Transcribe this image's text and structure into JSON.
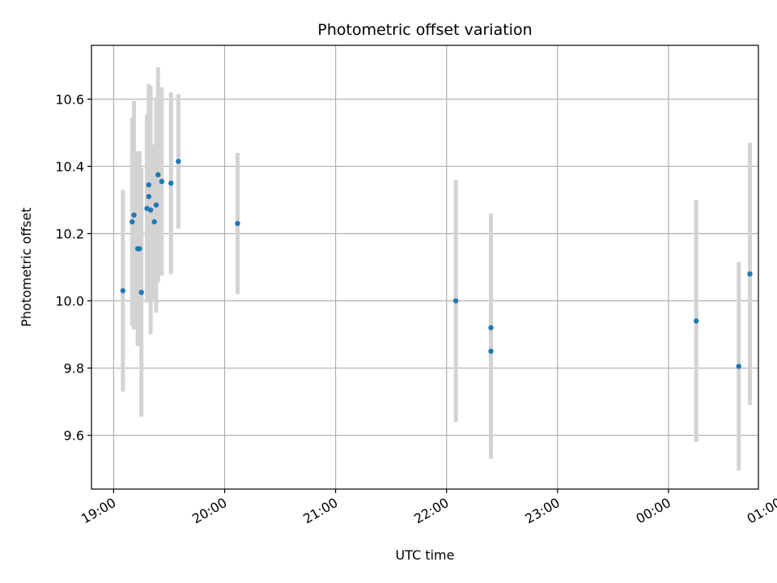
{
  "chart_data": {
    "type": "scatter",
    "title": "Photometric offset variation",
    "xlabel": "UTC time",
    "ylabel": "Photometric offset",
    "x_ticks": [
      "19:00",
      "20:00",
      "21:00",
      "22:00",
      "23:00",
      "00:00",
      "01:00"
    ],
    "y_ticks": [
      "9.6",
      "9.8",
      "10.0",
      "10.2",
      "10.4",
      "10.6"
    ],
    "xlim_hours": [
      18.8,
      24.81
    ],
    "ylim": [
      9.44,
      10.76
    ],
    "grid": true,
    "marker_color": "#1f77b4",
    "errorbar_color": "#d3d3d3",
    "points": [
      {
        "time": "19:05",
        "value": 10.03,
        "error": 0.3
      },
      {
        "time": "19:10",
        "value": 10.235,
        "error": 0.31
      },
      {
        "time": "19:11",
        "value": 10.255,
        "error": 0.34
      },
      {
        "time": "19:13",
        "value": 10.155,
        "error": 0.29
      },
      {
        "time": "19:14",
        "value": 10.155,
        "error": 0.29
      },
      {
        "time": "19:15",
        "value": 10.025,
        "error": 0.37
      },
      {
        "time": "19:18",
        "value": 10.275,
        "error": 0.28
      },
      {
        "time": "19:19",
        "value": 10.31,
        "error": 0.3
      },
      {
        "time": "19:19",
        "value": 10.345,
        "error": 0.3
      },
      {
        "time": "19:20",
        "value": 10.27,
        "error": 0.37
      },
      {
        "time": "19:22",
        "value": 10.235,
        "error": 0.23
      },
      {
        "time": "19:23",
        "value": 10.285,
        "error": 0.32
      },
      {
        "time": "19:24",
        "value": 10.375,
        "error": 0.32
      },
      {
        "time": "19:26",
        "value": 10.355,
        "error": 0.28
      },
      {
        "time": "19:31",
        "value": 10.35,
        "error": 0.27
      },
      {
        "time": "19:35",
        "value": 10.415,
        "error": 0.2
      },
      {
        "time": "20:07",
        "value": 10.23,
        "error": 0.21
      },
      {
        "time": "22:05",
        "value": 10.0,
        "error": 0.36
      },
      {
        "time": "22:24",
        "value": 9.92,
        "error": 0.34
      },
      {
        "time": "22:24",
        "value": 9.85,
        "error": 0.32
      },
      {
        "time": "00:15",
        "value": 9.94,
        "error": 0.36
      },
      {
        "time": "00:38",
        "value": 9.805,
        "error": 0.31
      },
      {
        "time": "00:44",
        "value": 10.08,
        "error": 0.39
      }
    ]
  }
}
